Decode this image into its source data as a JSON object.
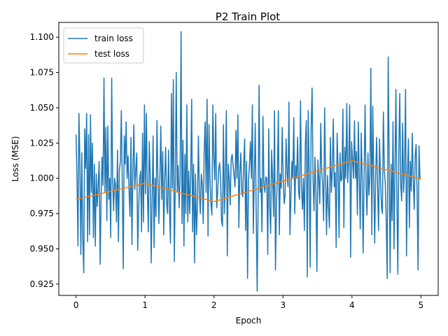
{
  "chart_data": {
    "type": "line",
    "title": "P2 Train Plot",
    "xlabel": "Epoch",
    "ylabel": "Loss (MSE)",
    "xlim": [
      -0.25,
      5.25
    ],
    "ylim": [
      0.917,
      1.1105
    ],
    "x_ticks": [
      0,
      1,
      2,
      3,
      4,
      5
    ],
    "x_tick_labels": [
      "0",
      "1",
      "2",
      "3",
      "4",
      "5"
    ],
    "y_ticks": [
      0.925,
      0.95,
      0.975,
      1.0,
      1.025,
      1.05,
      1.075,
      1.1
    ],
    "y_tick_labels": [
      "0.925",
      "0.950",
      "0.975",
      "1.000",
      "1.025",
      "1.050",
      "1.075",
      "1.100"
    ],
    "grid": false,
    "legend_position": "top-left",
    "series": [
      {
        "name": "train loss",
        "color": "#1f77b4",
        "x_start": 0,
        "x_end": 5,
        "values": [
          1.031,
          1.0,
          0.952,
          1.046,
          1.012,
          0.946,
          1.018,
          0.957,
          0.933,
          1.035,
          1.007,
          1.046,
          0.955,
          1.031,
          0.96,
          1.045,
          0.99,
          1.025,
          0.958,
          1.01,
          0.952,
          1.003,
          0.98,
          0.995,
          1.012,
          0.939,
          0.987,
          1.015,
          0.995,
          1.071,
          0.99,
          1.036,
          0.97,
          1.037,
          0.985,
          1.0,
          0.958,
          1.071,
          1.0,
          0.977,
          1.0,
          0.995,
          0.969,
          1.02,
          0.955,
          1.006,
          1.012,
          1.048,
          0.994,
          0.936,
          1.03,
          1.01,
          1.04,
          1.0,
          1.016,
          0.992,
          0.973,
          1.029,
          0.953,
          1.005,
          1.038,
          0.992,
          1.006,
          1.018,
          0.949,
          0.978,
          1.0,
          1.005,
          0.962,
          1.032,
          0.969,
          1.052,
          0.989,
          1.046,
          0.992,
          0.962,
          1.026,
          1.002,
          0.94,
          0.985,
          1.03,
          0.951,
          1.0,
          0.973,
          1.041,
          0.997,
          0.968,
          1.0,
          1.037,
          0.985,
          1.019,
          0.96,
          0.998,
          1.022,
          0.983,
          0.975,
          1.02,
          0.978,
          0.954,
          1.06,
          0.993,
          1.07,
          0.941,
          0.998,
          1.075,
          0.99,
          1.009,
          0.979,
          1.0,
          1.104,
          0.968,
          1.027,
          0.952,
          1.017,
          0.975,
          1.052,
          0.969,
          1.005,
          0.975,
          1.0,
          1.056,
          0.962,
          1.01,
          0.94,
          1.003,
          0.96,
          0.98,
          1.03,
          0.99,
          0.975,
          1.003,
          0.996,
          0.968,
          1.019,
          1.04,
          0.99,
          1.056,
          0.959,
          1.038,
          1.0,
          0.982,
          0.974,
          1.052,
          1.015,
          0.999,
          1.046,
          0.979,
          0.99,
          1.006,
          1.011,
          1.0,
          0.97,
          0.966,
          1.038,
          0.975,
          1.0,
          1.048,
          0.945,
          1.01,
          1.0,
          0.981,
          1.013,
          1.017,
          1.009,
          1.002,
          0.994,
          1.034,
          1.0,
          1.045,
          0.965,
          1.003,
          1.018,
          0.99,
          0.987,
          1.01,
          1.028,
          0.963,
          1.012,
          0.929,
          0.998,
          1.01,
          1.026,
          1.0,
          1.052,
          0.961,
          1.0,
          1.039,
          0.975,
          0.92,
          0.984,
          1.066,
          0.99,
          1.0,
          0.962,
          1.044,
          0.996,
          0.99,
          1.001,
          1.0,
          0.946,
          1.035,
          0.98,
          0.961,
          1.02,
          1.0,
          0.973,
          1.048,
          0.935,
          0.98,
          1.002,
          1.048,
          0.96,
          1.003,
          0.993,
          1.036,
          1.0,
          0.982,
          0.988,
          1.028,
          1.004,
          0.994,
          1.054,
          0.96,
          0.985,
          1.012,
          1.0,
          1.043,
          0.975,
          1.009,
          1.0,
          1.029,
          0.99,
          0.985,
          1.055,
          0.994,
          0.978,
          1.0,
          0.963,
          1.024,
          1.041,
          0.93,
          1.048,
          1.002,
          0.937,
          1.035,
          1.064,
          1.0,
          0.977,
          1.015,
          0.99,
          0.934,
          1.013,
          1.0,
          0.982,
          1.039,
          1.005,
          0.995,
          0.97,
          1.05,
          1.002,
          0.96,
          1.002,
          0.98,
          0.965,
          1.029,
          0.99,
          1.005,
          1.042,
          0.994,
          1.004,
          0.951,
          1.032,
          1.007,
          0.958,
          1.018,
          0.998,
          1.0,
          1.049,
          0.965,
          1.022,
          1.0,
          1.053,
          0.997,
          1.012,
          1.052,
          0.944,
          1.026,
          1.013,
          1.0,
          1.041,
          1.0,
          1.019,
          0.974,
          1.04,
          1.0,
          0.964,
          1.032,
          1.0,
          0.947,
          1.002,
          1.052,
          0.996,
          0.974,
          1.018,
          0.988,
          1.0,
          1.078,
          0.96,
          1.051,
          1.0,
          0.954,
          1.003,
          1.029,
          0.993,
          0.963,
          1.028,
          1.0,
          0.98,
          0.975,
          1.047,
          1.006,
          0.996,
          0.968,
          0.929,
          1.086,
          1.012,
          0.933,
          1.01,
          0.97,
          1.04,
          0.95,
          1.005,
          1.063,
          0.987,
          0.932,
          1.018,
          1.06,
          0.995,
          0.984,
          1.039,
          0.99,
          1.006,
          1.063,
          0.945,
          1.002,
          1.028,
          0.965,
          1.012,
          0.991,
          1.032,
          1.0,
          0.978,
          1.016,
          1.024,
          0.989,
          0.935,
          1.023,
          1.0,
          0.999
        ]
      },
      {
        "name": "test loss",
        "color": "#ff7f0e",
        "x": [
          0,
          1,
          2,
          3,
          4,
          5
        ],
        "values": [
          0.985,
          0.9965,
          0.9835,
          0.998,
          1.0125,
          0.9995
        ]
      }
    ]
  }
}
